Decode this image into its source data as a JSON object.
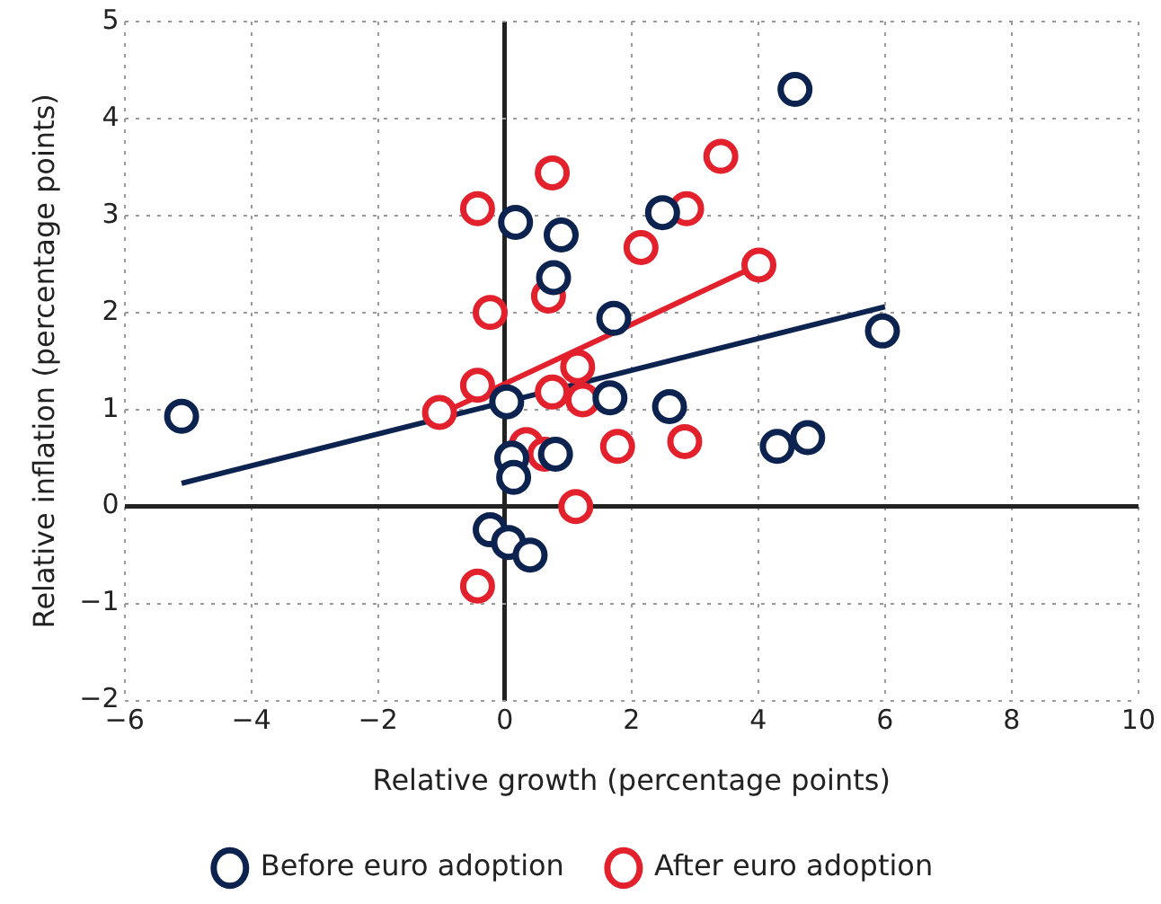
{
  "chart_data": {
    "type": "scatter",
    "xlabel": "Relative growth (percentage points)",
    "ylabel": "Relative inflation (percentage points)",
    "xlim": [
      -6,
      10
    ],
    "xticks": [
      {
        "value": -6,
        "label": "−6"
      },
      {
        "value": -4,
        "label": "−4"
      },
      {
        "value": -2,
        "label": "−2"
      },
      0,
      2,
      4,
      6,
      8,
      10
    ],
    "ylim": [
      -2,
      5
    ],
    "yticks": [
      {
        "value": -2,
        "label": "−2"
      },
      {
        "value": -1,
        "label": "−1"
      },
      0,
      1,
      2,
      3,
      4,
      5
    ],
    "grid": true,
    "legend": "bottom",
    "marker": "circle",
    "series": [
      {
        "name": "Before euro adoption",
        "color": "#0c2350",
        "x": [
          -5.1,
          4.58,
          0.17,
          0.89,
          0.77,
          1.72,
          5.96,
          2.49,
          0.03,
          2.6,
          1.66,
          4.3,
          4.78,
          0.11,
          0.14,
          0.8,
          -0.23,
          0.06,
          0.4
        ],
        "values": [
          0.93,
          4.3,
          2.93,
          2.8,
          2.36,
          1.94,
          1.81,
          3.03,
          1.08,
          1.03,
          1.12,
          0.62,
          0.71,
          0.5,
          0.3,
          0.54,
          -0.24,
          -0.37,
          -0.5
        ]
      },
      {
        "name": "After euro adoption",
        "color": "#e3212d",
        "x": [
          -0.43,
          0.75,
          -0.23,
          0.69,
          2.15,
          2.87,
          3.41,
          4.01,
          -1.03,
          -0.43,
          1.15,
          0.75,
          1.23,
          0.34,
          0.63,
          1.78,
          1.12,
          -0.43,
          2.84
        ],
        "values": [
          3.07,
          3.44,
          2.0,
          2.17,
          2.67,
          3.07,
          3.61,
          2.49,
          0.97,
          1.25,
          1.44,
          1.18,
          1.1,
          0.64,
          0.54,
          0.62,
          0.0,
          -0.82,
          0.67
        ]
      },
      {
        "type": "line",
        "color": "#0c2350",
        "marker": "none",
        "x": [
          -5.1,
          6.0
        ],
        "values": [
          0.24,
          2.06
        ]
      },
      {
        "type": "line",
        "color": "#e3212d",
        "marker": "none",
        "x": [
          -1.03,
          4.0
        ],
        "values": [
          0.95,
          2.49
        ]
      }
    ]
  }
}
